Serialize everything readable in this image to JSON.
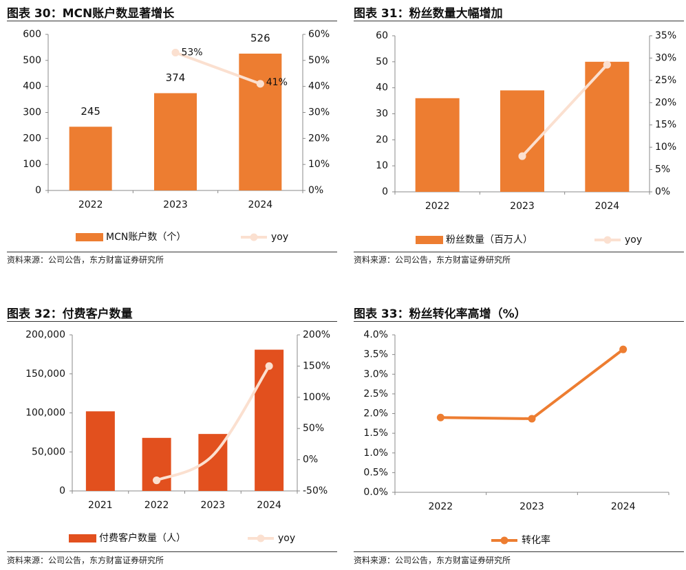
{
  "panels": [
    {
      "title": "图表 30：MCN账户数显著增长",
      "source": "资料来源：公司公告，东方财富证券研究所",
      "chart_data": {
        "type": "bar",
        "categories": [
          "2022",
          "2023",
          "2024"
        ],
        "series": [
          {
            "name": "MCN账户数（个）",
            "type": "bar",
            "axis": "left",
            "values": [
              245,
              374,
              526
            ],
            "labels": [
              "245",
              "374",
              "526"
            ]
          },
          {
            "name": "yoy",
            "type": "line",
            "axis": "right",
            "values": [
              null,
              53,
              41
            ],
            "labels": [
              "",
              "53%",
              "41%"
            ]
          }
        ],
        "ylim": [
          0,
          600
        ],
        "yticks": [
          "0",
          "100",
          "200",
          "300",
          "400",
          "500",
          "600"
        ],
        "y2lim": [
          0,
          60
        ],
        "y2ticks": [
          "0%",
          "10%",
          "20%",
          "30%",
          "40%",
          "50%",
          "60%"
        ],
        "legend": "bottom",
        "colors": {
          "bar": "#ED7D31",
          "line": "#FBE0D0"
        }
      }
    },
    {
      "title": "图表 31：粉丝数量大幅增加",
      "source": "资料来源：公司公告，东方财富证券研究所",
      "chart_data": {
        "type": "bar",
        "categories": [
          "2022",
          "2023",
          "2024"
        ],
        "series": [
          {
            "name": "粉丝数量（百万人）",
            "type": "bar",
            "axis": "left",
            "values": [
              36,
              39,
              50
            ],
            "labels": [
              "",
              "",
              ""
            ]
          },
          {
            "name": "yoy",
            "type": "line",
            "axis": "right",
            "values": [
              null,
              8,
              28.5
            ],
            "labels": [
              "",
              "",
              ""
            ]
          }
        ],
        "ylim": [
          0,
          60
        ],
        "yticks": [
          "0",
          "10",
          "20",
          "30",
          "40",
          "50",
          "60"
        ],
        "y2lim": [
          0,
          35
        ],
        "y2ticks": [
          "0%",
          "5%",
          "10%",
          "15%",
          "20%",
          "25%",
          "30%",
          "35%"
        ],
        "legend": "bottom",
        "colors": {
          "bar": "#ED7D31",
          "line": "#FBE0D0"
        }
      }
    },
    {
      "title": "图表 32：付费客户数量",
      "source": "资料来源：公司公告，东方财富证券研究所",
      "chart_data": {
        "type": "bar",
        "categories": [
          "2021",
          "2022",
          "2023",
          "2024"
        ],
        "series": [
          {
            "name": "付费客户数量（人）",
            "type": "bar",
            "axis": "left",
            "values": [
              102000,
              68000,
              73000,
              181000
            ],
            "labels": [
              "",
              "",
              "",
              ""
            ]
          },
          {
            "name": "yoy",
            "type": "line",
            "axis": "right",
            "values": [
              null,
              -33,
              7,
              150
            ],
            "labels": [
              "",
              "",
              "",
              ""
            ]
          }
        ],
        "ylim": [
          0,
          200000
        ],
        "yticks": [
          "0",
          "50,000",
          "100,000",
          "150,000",
          "200,000"
        ],
        "y2lim": [
          -50,
          200
        ],
        "y2ticks": [
          "-50%",
          "0%",
          "50%",
          "100%",
          "150%",
          "200%"
        ],
        "legend": "bottom",
        "colors": {
          "bar": "#E2501E",
          "line": "#FBE0D0"
        }
      }
    },
    {
      "title": "图表 33：粉丝转化率高增（%）",
      "source": "资料来源：公司公告，东方财富证券研究所",
      "chart_data": {
        "type": "line",
        "categories": [
          "2022",
          "2023",
          "2024"
        ],
        "series": [
          {
            "name": "转化率",
            "type": "line",
            "axis": "left",
            "values": [
              1.9,
              1.87,
              3.63
            ],
            "labels": [
              "",
              "",
              ""
            ]
          }
        ],
        "ylim": [
          0,
          4
        ],
        "yticks": [
          "0.0%",
          "0.5%",
          "1.0%",
          "1.5%",
          "2.0%",
          "2.5%",
          "3.0%",
          "3.5%",
          "4.0%"
        ],
        "legend": "bottom",
        "colors": {
          "line": "#ED7D31"
        }
      }
    }
  ]
}
